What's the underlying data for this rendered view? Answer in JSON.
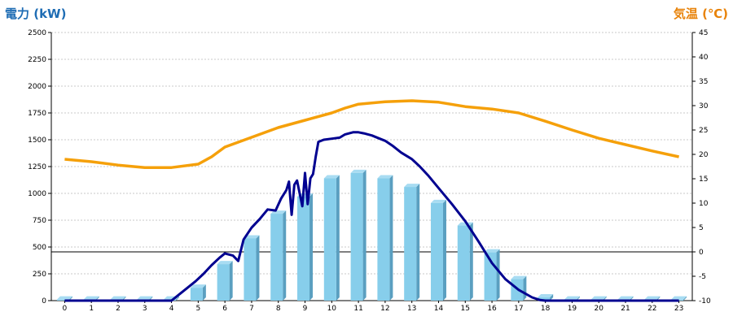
{
  "chart_data": {
    "type": "bar",
    "title": "",
    "ylabel": "電力 (kW)",
    "y2label": "気温 (℃)",
    "colors": {
      "ylabel": "#1f6db4",
      "y2label": "#e8830a",
      "bars": "#87ceeb",
      "bars_side": "#5a9fc0",
      "bars_top": "#a8dcf2",
      "power_line": "#000090",
      "temp_line": "#f5a00a",
      "grid": "#c8c8c8",
      "zero_line": "#000000"
    },
    "categories": [
      "0",
      "1",
      "2",
      "3",
      "4",
      "5",
      "6",
      "7",
      "8",
      "9",
      "10",
      "11",
      "12",
      "13",
      "14",
      "15",
      "16",
      "17",
      "18",
      "19",
      "20",
      "21",
      "22",
      "23"
    ],
    "ylim": [
      0,
      2500
    ],
    "yticks": [
      "0",
      "250",
      "500",
      "750",
      "1000",
      "1250",
      "1500",
      "1750",
      "2000",
      "2250",
      "2500"
    ],
    "y2lim": [
      -10,
      45
    ],
    "y2ticks": [
      "-10",
      "-5",
      "0",
      "5",
      "10",
      "15",
      "20",
      "25",
      "30",
      "35",
      "40",
      "45"
    ],
    "series": [
      {
        "kind": "bar",
        "values": [
          10,
          10,
          10,
          10,
          10,
          120,
          340,
          580,
          810,
          970,
          1140,
          1190,
          1140,
          1060,
          910,
          700,
          450,
          200,
          30,
          10,
          10,
          10,
          10,
          10
        ]
      },
      {
        "kind": "line",
        "x": [
          0,
          1,
          2,
          3,
          4,
          4.3,
          4.6,
          4.9,
          5.2,
          5.5,
          5.8,
          6.0,
          6.3,
          6.5,
          6.7,
          7.0,
          7.3,
          7.6,
          7.9,
          8.1,
          8.3,
          8.4,
          8.5,
          8.6,
          8.7,
          8.9,
          9.0,
          9.1,
          9.2,
          9.3,
          9.4,
          9.5,
          9.7,
          10.0,
          10.3,
          10.5,
          10.8,
          11.0,
          11.2,
          11.5,
          11.8,
          12.0,
          12.3,
          12.6,
          13.0,
          13.3,
          13.6,
          14.0,
          14.5,
          15.0,
          15.5,
          16.0,
          16.5,
          17.0,
          17.5,
          17.8,
          18.0,
          19,
          20,
          21,
          22,
          23
        ],
        "values": [
          0,
          0,
          0,
          0,
          0,
          60,
          120,
          180,
          250,
          330,
          400,
          440,
          420,
          370,
          570,
          680,
          760,
          850,
          840,
          950,
          1030,
          1110,
          800,
          1080,
          1120,
          880,
          1190,
          900,
          1140,
          1180,
          1340,
          1480,
          1500,
          1510,
          1520,
          1550,
          1570,
          1570,
          1560,
          1540,
          1510,
          1490,
          1440,
          1380,
          1320,
          1250,
          1170,
          1050,
          900,
          740,
          550,
          350,
          200,
          100,
          30,
          5,
          0,
          0,
          0,
          0,
          0,
          0
        ]
      },
      {
        "kind": "line",
        "axis": "right",
        "x": [
          0,
          1,
          2,
          3,
          4,
          5,
          5.5,
          6,
          7,
          8,
          9,
          10,
          10.5,
          11,
          12,
          13,
          14,
          15,
          16,
          17,
          18,
          19,
          20,
          21,
          22,
          23
        ],
        "values": [
          19,
          18.5,
          17.8,
          17.3,
          17.3,
          18,
          19.5,
          21.5,
          23.5,
          25.5,
          27,
          28.5,
          29.5,
          30.3,
          30.8,
          31,
          30.7,
          29.8,
          29.3,
          28.5,
          26.8,
          25,
          23.3,
          22,
          20.7,
          19.5
        ]
      }
    ]
  }
}
